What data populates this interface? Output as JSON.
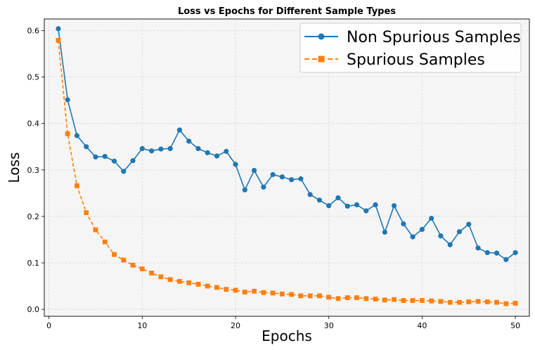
{
  "chart_data": {
    "type": "line",
    "title": "Loss vs Epochs for Different Sample Types",
    "xlabel": "Epochs",
    "ylabel": "Loss",
    "xlim": [
      -0.5,
      51.5
    ],
    "ylim": [
      -0.015,
      0.625
    ],
    "xticks": [
      0,
      10,
      20,
      30,
      40,
      50
    ],
    "yticks": [
      0.0,
      0.1,
      0.2,
      0.3,
      0.4,
      0.5,
      0.6
    ],
    "ytick_labels": [
      "0.0",
      "0.1",
      "0.2",
      "0.3",
      "0.4",
      "0.5",
      "0.6"
    ],
    "grid": true,
    "legend_position": "top-right",
    "x": [
      1,
      2,
      3,
      4,
      5,
      6,
      7,
      8,
      9,
      10,
      11,
      12,
      13,
      14,
      15,
      16,
      17,
      18,
      19,
      20,
      21,
      22,
      23,
      24,
      25,
      26,
      27,
      28,
      29,
      30,
      31,
      32,
      33,
      34,
      35,
      36,
      37,
      38,
      39,
      40,
      41,
      42,
      43,
      44,
      45,
      46,
      47,
      48,
      49,
      50
    ],
    "series": [
      {
        "name": "Non Spurious Samples",
        "color": "#1f77b4",
        "marker": "circle",
        "linestyle": "solid",
        "values": [
          0.604,
          0.451,
          0.374,
          0.35,
          0.328,
          0.329,
          0.319,
          0.297,
          0.32,
          0.346,
          0.341,
          0.345,
          0.346,
          0.386,
          0.362,
          0.346,
          0.337,
          0.33,
          0.34,
          0.312,
          0.257,
          0.299,
          0.263,
          0.29,
          0.285,
          0.279,
          0.281,
          0.247,
          0.235,
          0.223,
          0.24,
          0.222,
          0.225,
          0.212,
          0.225,
          0.166,
          0.223,
          0.184,
          0.156,
          0.172,
          0.196,
          0.158,
          0.139,
          0.167,
          0.183,
          0.132,
          0.122,
          0.121,
          0.107,
          0.122
        ]
      },
      {
        "name": "Spurious Samples",
        "color": "#ff7f0e",
        "marker": "square",
        "linestyle": "dashed",
        "values": [
          0.579,
          0.378,
          0.266,
          0.208,
          0.171,
          0.145,
          0.118,
          0.106,
          0.095,
          0.087,
          0.078,
          0.07,
          0.064,
          0.06,
          0.057,
          0.054,
          0.05,
          0.047,
          0.043,
          0.041,
          0.037,
          0.039,
          0.036,
          0.035,
          0.033,
          0.032,
          0.029,
          0.029,
          0.029,
          0.026,
          0.023,
          0.025,
          0.025,
          0.023,
          0.022,
          0.02,
          0.021,
          0.019,
          0.019,
          0.019,
          0.018,
          0.017,
          0.015,
          0.015,
          0.016,
          0.017,
          0.016,
          0.015,
          0.012,
          0.013
        ]
      }
    ]
  }
}
